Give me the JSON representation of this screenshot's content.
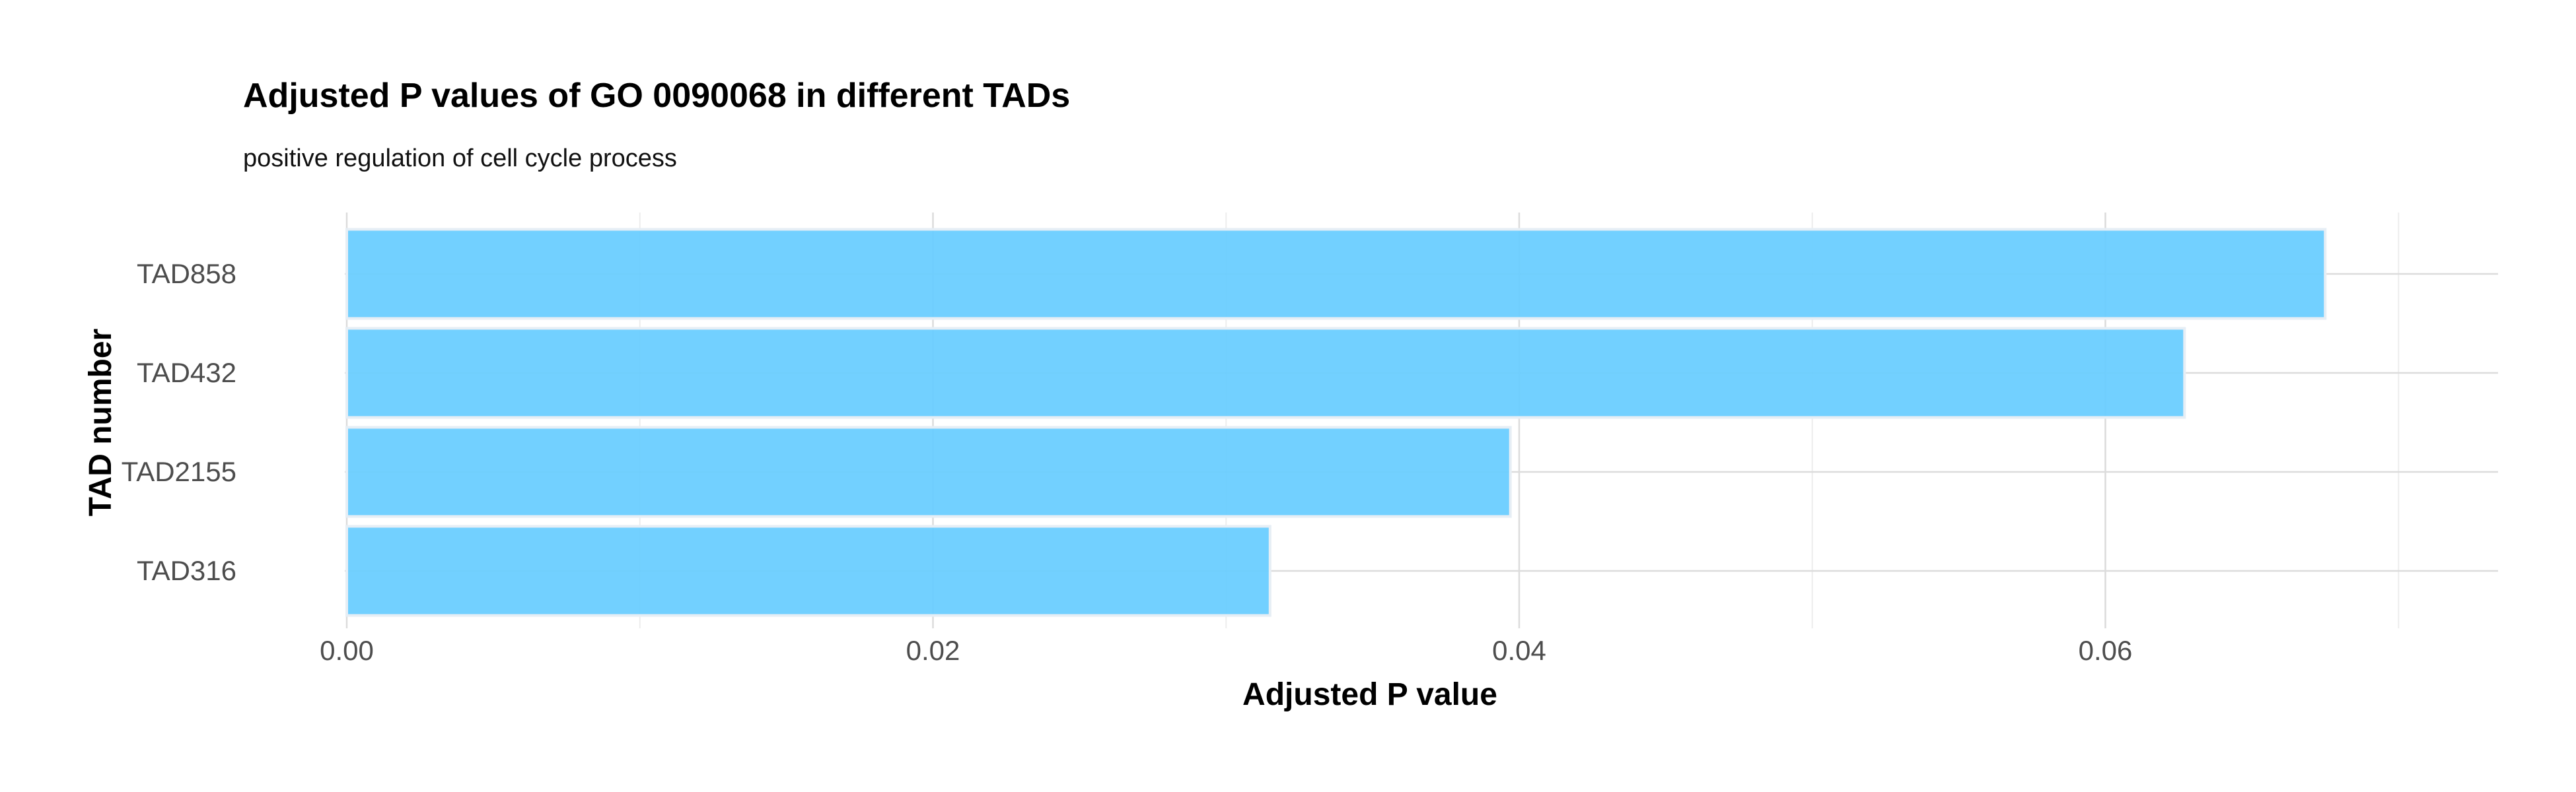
{
  "chart_data": {
    "type": "bar",
    "orientation": "horizontal",
    "title": "Adjusted P values of GO 0090068 in different TADs",
    "subtitle": "positive regulation of cell cycle process",
    "xlabel": "Adjusted P value",
    "ylabel": "TAD number",
    "categories": [
      "TAD858",
      "TAD432",
      "TAD2155",
      "TAD316"
    ],
    "values": [
      0.0675,
      0.0627,
      0.0397,
      0.0315
    ],
    "xlim": [
      0,
      0.0712
    ],
    "xticks": [
      0,
      0.02,
      0.04,
      0.06
    ],
    "xtick_labels": [
      "0.00",
      "0.02",
      "0.04",
      "0.06"
    ],
    "grid": true,
    "legend": "none",
    "colors": {
      "bar_fill": "#66CCFF",
      "bar_border": "#E6EEF5",
      "grid_major": "#DCDCDC",
      "grid_minor": "#EDEDED",
      "background": "#FFFFFF"
    }
  }
}
